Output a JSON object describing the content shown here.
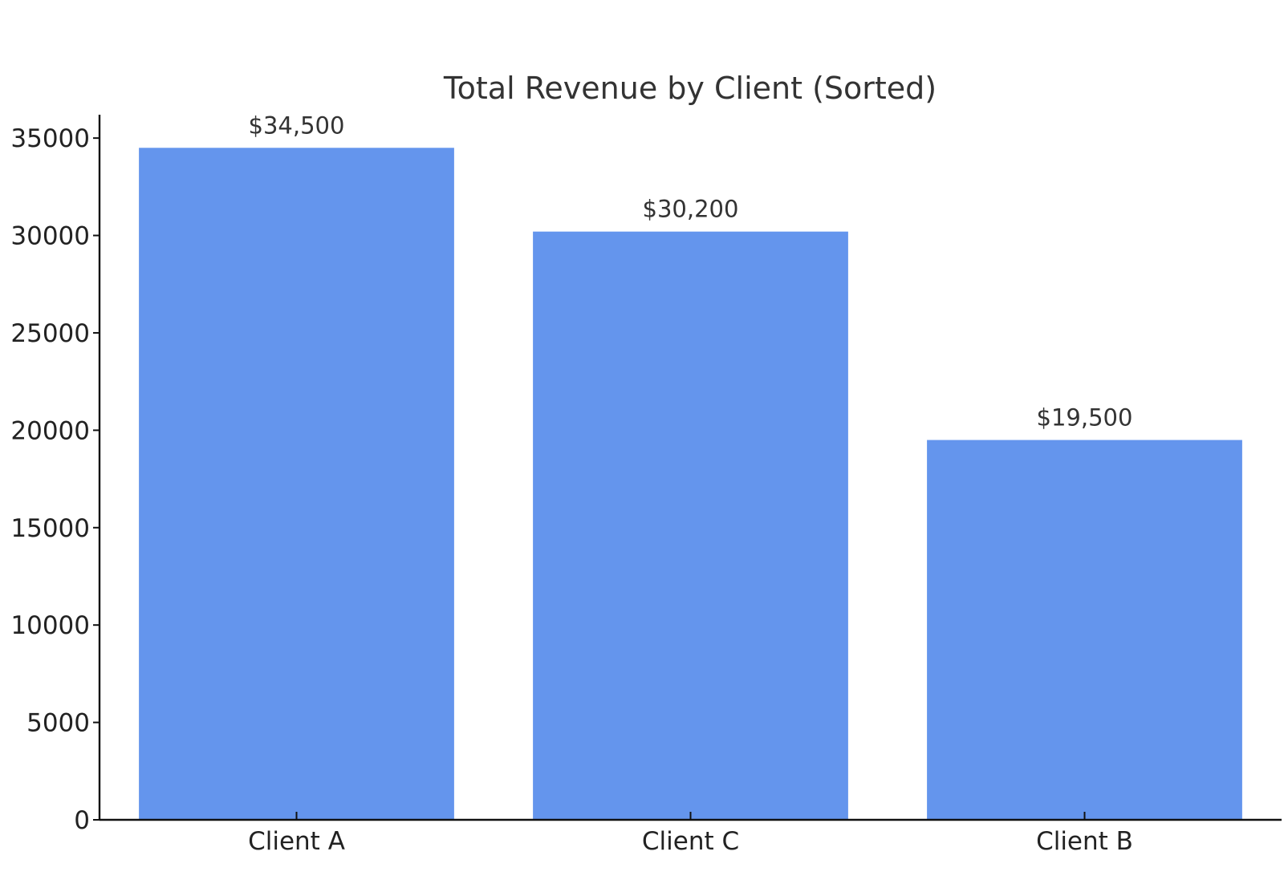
{
  "chart_data": {
    "type": "bar",
    "title": "Total Revenue by Client (Sorted)",
    "xlabel": "",
    "ylabel": "",
    "categories": [
      "Client A",
      "Client C",
      "Client B"
    ],
    "values": [
      34500,
      30200,
      19500
    ],
    "value_labels": [
      "$34,500",
      "$30,200",
      "$19,500"
    ],
    "ylim": [
      0,
      36200
    ],
    "yticks": [
      0,
      5000,
      10000,
      15000,
      20000,
      25000,
      30000,
      35000
    ],
    "ytick_labels": [
      "0",
      "5000",
      "10000",
      "15000",
      "20000",
      "25000",
      "30000",
      "35000"
    ],
    "bar_color": "#6495ED",
    "grid": false,
    "legend": "none"
  }
}
